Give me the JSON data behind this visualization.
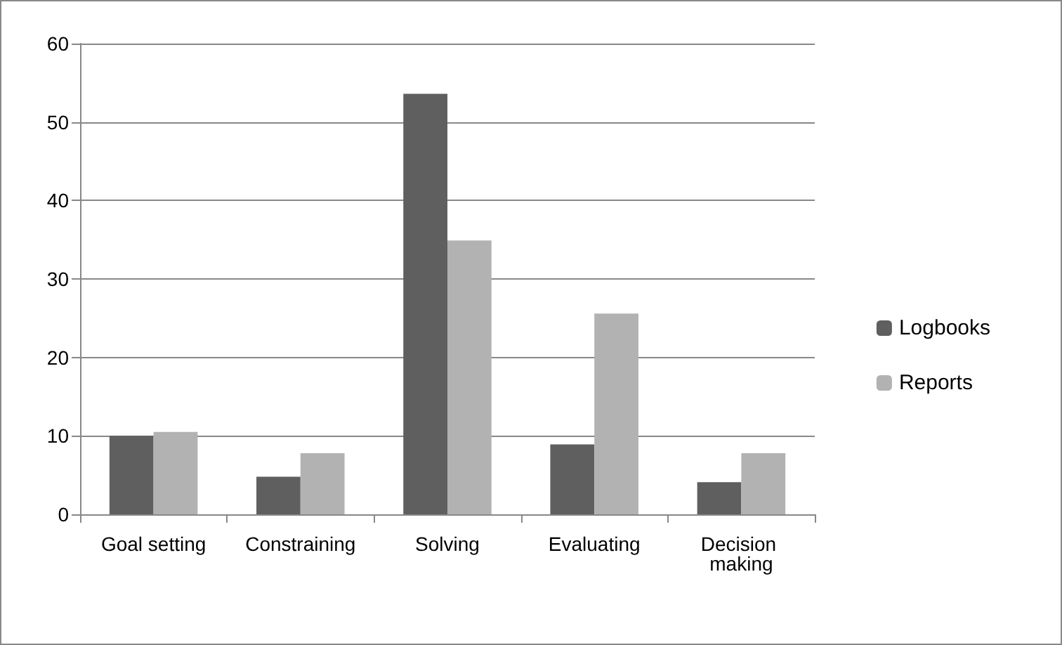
{
  "chart_data": {
    "type": "bar",
    "categories": [
      "Goal setting",
      "Constraining",
      "Solving",
      "Evaluating",
      "Decision making"
    ],
    "series": [
      {
        "name": "Logbooks",
        "color": "#5f5f5f",
        "values": [
          10,
          4.8,
          53.6,
          8.9,
          4.1
        ]
      },
      {
        "name": "Reports",
        "color": "#b2b2b2",
        "values": [
          10.5,
          7.8,
          34.9,
          25.6,
          7.8
        ]
      }
    ],
    "ylim": [
      0,
      60
    ],
    "yticks": [
      0,
      10,
      20,
      30,
      40,
      50,
      60
    ],
    "grid": "y",
    "legend": "right"
  }
}
